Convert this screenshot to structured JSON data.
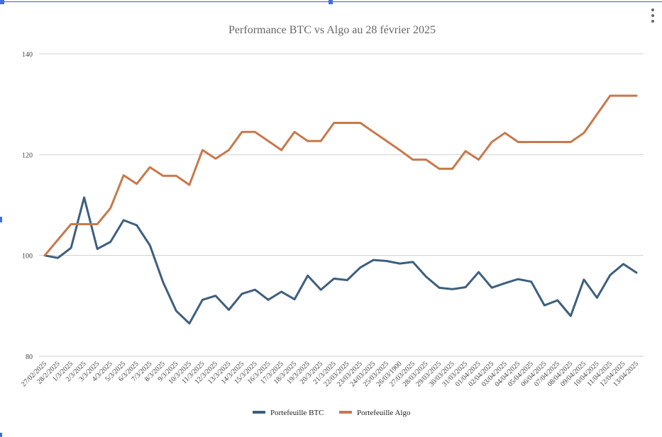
{
  "chart_data": {
    "type": "line",
    "title": "Performance BTC vs Algo au 28 février 2025",
    "xlabel": "",
    "ylabel": "",
    "ylim": [
      80,
      140
    ],
    "yticks": [
      "80",
      "100",
      "120",
      "140"
    ],
    "grid": true,
    "legend_position": "bottom",
    "categories": [
      "27/02/2025",
      "28/2/2025",
      "1/3/2025",
      "2/3/2025",
      "3/3/2025",
      "4/3/2025",
      "5/3/2025",
      "6/3/2025",
      "7/3/2025",
      "8/3/2025",
      "9/3/2025",
      "10/3/2025",
      "11/3/2025",
      "12/3/2025",
      "13/3/2025",
      "14/3/2025",
      "15/3/2025",
      "16/3/2025",
      "17/3/2025",
      "18/3/2025",
      "19/3/2025",
      "20/3/2025",
      "21/3/2025",
      "22/03/2025",
      "23/03/2025",
      "24/03/2025",
      "25/03/2025",
      "26/03/1900",
      "27/03/2025",
      "28/03/2025",
      "29/03/2025",
      "30/03/2025",
      "31/03/2025",
      "01/04/2025",
      "02/04/2025",
      "03/04/2025",
      "04/04/2025",
      "05/04/2025",
      "06/04/2025",
      "07/04/2025",
      "08/04/2025",
      "09/04/2025",
      "10/04/2025",
      "11/04/2025",
      "12/04/2025",
      "13/04/2025"
    ],
    "series": [
      {
        "name": "Portefeuille BTC",
        "color": "#3d5f7d",
        "values": [
          100,
          99.5,
          101.5,
          111.5,
          101.3,
          102.7,
          107,
          106,
          102,
          94.7,
          89,
          86.5,
          91.2,
          92,
          89.2,
          92.4,
          93.2,
          91.2,
          92.8,
          91.3,
          96,
          93.2,
          95.4,
          95.1,
          97.6,
          99.1,
          98.9,
          98.4,
          98.7,
          95.8,
          93.6,
          93.3,
          93.7,
          96.7,
          93.6,
          94.5,
          95.3,
          94.8,
          90.1,
          91.1,
          88,
          95.2,
          91.6,
          96.1,
          98.3,
          96.6
        ]
      },
      {
        "name": "Portefeuille Algo",
        "color": "#c8784a",
        "values": [
          100,
          103.1,
          106.2,
          106.2,
          106.2,
          109.4,
          115.9,
          114.2,
          117.5,
          115.8,
          115.8,
          114,
          120.9,
          119.2,
          120.9,
          124.5,
          124.5,
          122.7,
          120.9,
          124.5,
          122.7,
          122.7,
          126.3,
          126.3,
          126.3,
          124.5,
          122.7,
          120.9,
          119,
          119,
          117.2,
          117.2,
          120.7,
          119,
          122.5,
          124.3,
          122.5,
          122.5,
          122.5,
          122.5,
          122.5,
          124.3,
          128,
          131.7,
          131.7,
          131.7
        ]
      }
    ]
  }
}
